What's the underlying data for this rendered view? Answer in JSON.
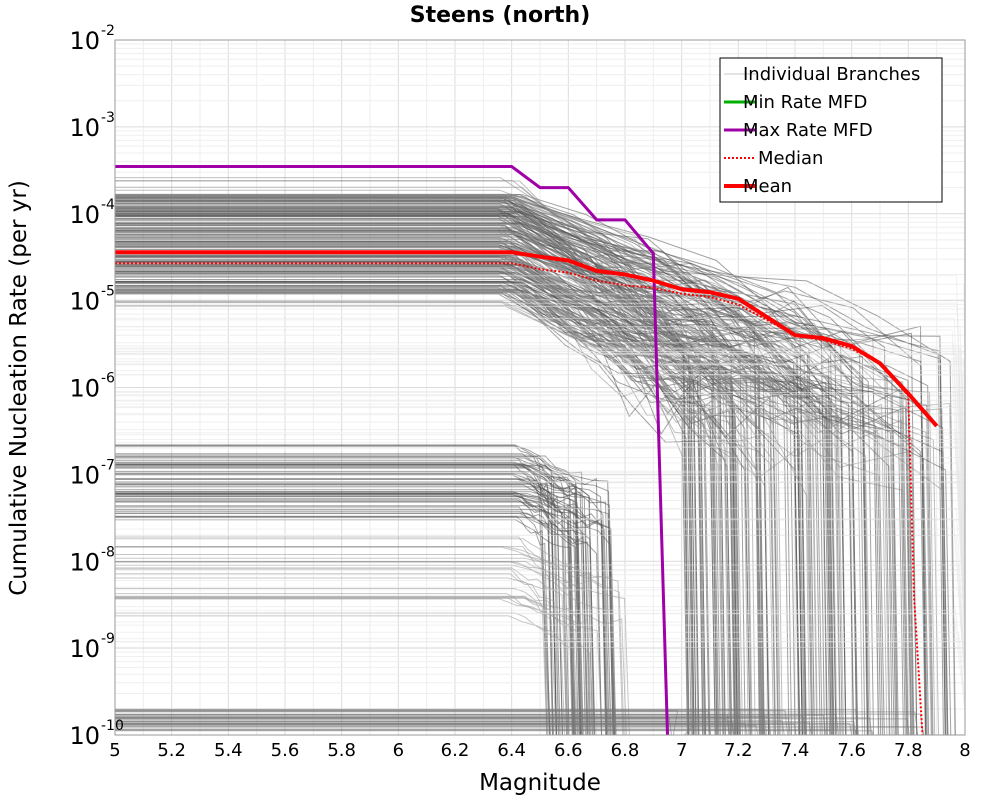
{
  "chart_data": {
    "type": "line",
    "title": "Steens (north)",
    "xlabel": "Magnitude",
    "ylabel": "Cumulative Nucleation Rate (per yr)",
    "xlim": [
      5,
      8
    ],
    "ylim": [
      1e-10,
      0.01
    ],
    "yscale": "log",
    "grid": true,
    "legend_position": "top-right",
    "x_ticks": [
      "5",
      "5.2",
      "5.4",
      "5.6",
      "5.8",
      "6",
      "6.2",
      "6.4",
      "6.6",
      "6.8",
      "7",
      "7.2",
      "7.4",
      "7.6",
      "7.8",
      "8"
    ],
    "y_ticks": [
      {
        "base": "10",
        "exp": "-10"
      },
      {
        "base": "10",
        "exp": "-9"
      },
      {
        "base": "10",
        "exp": "-8"
      },
      {
        "base": "10",
        "exp": "-7"
      },
      {
        "base": "10",
        "exp": "-6"
      },
      {
        "base": "10",
        "exp": "-5"
      },
      {
        "base": "10",
        "exp": "-4"
      },
      {
        "base": "10",
        "exp": "-3"
      },
      {
        "base": "10",
        "exp": "-2"
      }
    ],
    "legend": [
      {
        "label": "Individual Branches",
        "color": "#c8c8c8",
        "style": "thin"
      },
      {
        "label": "Min Rate MFD",
        "color": "#00b000",
        "style": "solid"
      },
      {
        "label": "Max Rate MFD",
        "color": "#a000a8",
        "style": "solid"
      },
      {
        "label": "Median",
        "color": "#ff0000",
        "style": "dotted"
      },
      {
        "label": "Mean",
        "color": "#ff0000",
        "style": "thick"
      }
    ],
    "series": [
      {
        "name": "Max Rate MFD",
        "color": "#a000a8",
        "x": [
          5.0,
          6.4,
          6.5,
          6.6,
          6.7,
          6.8,
          6.9,
          6.95
        ],
        "y": [
          0.00035,
          0.00035,
          0.0002,
          0.0002,
          8.5e-05,
          8.5e-05,
          3.5e-05,
          1e-10
        ]
      },
      {
        "name": "Median",
        "color": "#ff0000",
        "x": [
          5.0,
          6.4,
          6.5,
          6.6,
          6.7,
          6.8,
          6.9,
          7.0,
          7.1,
          7.2,
          7.3,
          7.4,
          7.5,
          7.6,
          7.7,
          7.8,
          7.82,
          7.85
        ],
        "y": [
          2.7e-05,
          2.7e-05,
          2.3e-05,
          2.1e-05,
          1.7e-05,
          1.5e-05,
          1.4e-05,
          1.2e-05,
          1.1e-05,
          9e-06,
          6e-06,
          4e-06,
          3.5e-06,
          2.8e-06,
          1.9e-06,
          8e-07,
          4e-09,
          1e-10
        ]
      },
      {
        "name": "Mean",
        "color": "#ff0000",
        "x": [
          5.0,
          6.4,
          6.5,
          6.6,
          6.7,
          6.8,
          6.9,
          7.0,
          7.1,
          7.2,
          7.3,
          7.4,
          7.5,
          7.6,
          7.7,
          7.8,
          7.9
        ],
        "y": [
          3.6e-05,
          3.6e-05,
          3.2e-05,
          2.9e-05,
          2.2e-05,
          2e-05,
          1.7e-05,
          1.35e-05,
          1.25e-05,
          1.05e-05,
          6.5e-06,
          4e-06,
          3.7e-06,
          3e-06,
          1.9e-06,
          8.5e-07,
          3.6e-07
        ]
      }
    ],
    "branch_groups": [
      {
        "color": "#555555",
        "count": 140,
        "y_min": 1.2e-05,
        "y_max": 0.00017,
        "x_knee": 6.4,
        "x_drop": [
          7.0,
          7.95
        ],
        "tail_decades": 2.0
      },
      {
        "color": "#8a8a8a",
        "count": 70,
        "y_min": 8e-06,
        "y_max": 0.0003,
        "x_knee": 6.4,
        "x_drop": [
          7.0,
          7.95
        ],
        "tail_decades": 2.2
      },
      {
        "color": "#555555",
        "count": 60,
        "y_min": 3e-08,
        "y_max": 2.2e-07,
        "x_knee": 6.45,
        "x_drop": [
          6.5,
          6.75
        ],
        "tail_decades": 0.4
      },
      {
        "color": "#999999",
        "count": 25,
        "y_min": 2e-09,
        "y_max": 2e-08,
        "x_knee": 6.4,
        "x_drop": [
          6.5,
          6.8
        ],
        "tail_decades": 0.4
      },
      {
        "color": "#777777",
        "count": 35,
        "y_min": 1.05e-10,
        "y_max": 2e-10,
        "x_knee": 7.0,
        "x_drop": [
          6.9,
          7.85
        ],
        "tail_decades": 0.0
      },
      {
        "color": "#e6e6e6",
        "count": 60,
        "y_min": 1e-09,
        "y_max": 2e-05,
        "x_knee": 8.0,
        "x_drop": [
          8.0,
          8.0
        ],
        "tail_decades": 0.0
      }
    ]
  }
}
